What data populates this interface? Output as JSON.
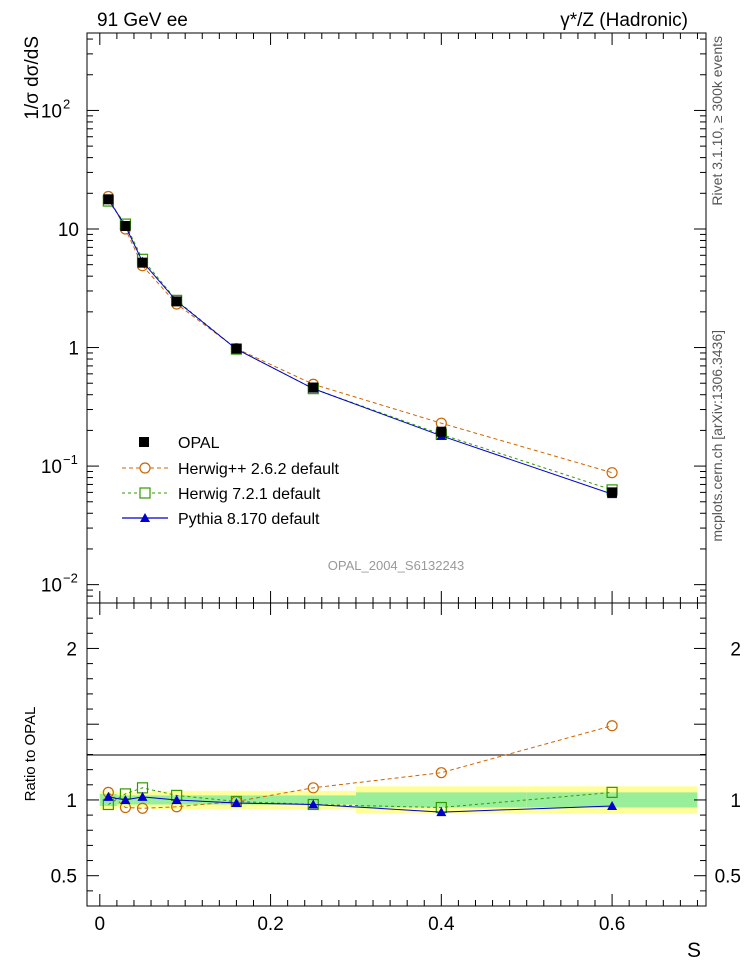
{
  "header": {
    "left_title": "91 GeV ee",
    "right_title": "γ*/Z (Hadronic)"
  },
  "side_text": {
    "rivet": "Rivet 3.1.10, ≥ 300k events",
    "source": "mcplots.cern.ch [arXiv:1306.3436]"
  },
  "watermark": "OPAL_2004_S6132243",
  "main_ylabel": "1/σ dσ/dS",
  "ratio_ylabel": "Ratio to OPAL",
  "xlabel": "S",
  "main_yticks": [
    {
      "value": 100,
      "base": "10",
      "exp": "2"
    },
    {
      "value": 10,
      "base": "10",
      "exp": ""
    },
    {
      "value": 1,
      "base": "1",
      "exp": ""
    },
    {
      "value": 0.1,
      "base": "10",
      "exp": "−1"
    },
    {
      "value": 0.01,
      "base": "10",
      "exp": "−2"
    }
  ],
  "ratio_yticks": [
    {
      "value": 2,
      "label": "2"
    },
    {
      "value": 1,
      "label": "1"
    },
    {
      "value": 0.5,
      "label": "0.5"
    }
  ],
  "xticks": [
    {
      "value": 0,
      "label": "0"
    },
    {
      "value": 0.2,
      "label": "0.2"
    },
    {
      "value": 0.4,
      "label": "0.4"
    },
    {
      "value": 0.6,
      "label": "0.6"
    }
  ],
  "legend": {
    "opal": "OPAL",
    "herwigpp": "Herwig++ 2.6.2 default",
    "herwig7": "Herwig 7.2.1 default",
    "pythia": "Pythia 8.170 default"
  },
  "chart_data": {
    "type": "line",
    "title": "91 GeV ee — γ*/Z (Hadronic)",
    "xlabel": "S",
    "ylabel": "1/σ dσ/dS",
    "yscale": "log",
    "xlim": [
      -0.015,
      0.71
    ],
    "ylim": [
      0.007,
      450
    ],
    "ratio_ylim": [
      0.3,
      2.3
    ],
    "x": [
      0.01,
      0.03,
      0.05,
      0.09,
      0.16,
      0.25,
      0.4,
      0.6
    ],
    "bin_edges": [
      0.0,
      0.02,
      0.04,
      0.06,
      0.12,
      0.2,
      0.3,
      0.5,
      0.7
    ],
    "data": {
      "name": "OPAL",
      "values": [
        17.8,
        10.6,
        5.2,
        2.45,
        0.98,
        0.46,
        0.195,
        0.06
      ],
      "ratio_band_inner": [
        0.04,
        0.03,
        0.03,
        0.03,
        0.03,
        0.03,
        0.05,
        0.05
      ],
      "ratio_band_outer": [
        0.06,
        0.05,
        0.05,
        0.06,
        0.06,
        0.06,
        0.09,
        0.09
      ]
    },
    "series": [
      {
        "name": "Herwig++ 2.6.2 default",
        "color": "#cc6600",
        "marker": "open-circle",
        "dash": "4,3",
        "values": [
          18.8,
          10.0,
          4.9,
          2.33,
          0.98,
          0.49,
          0.23,
          0.088
        ],
        "ratio": [
          1.05,
          0.95,
          0.945,
          0.955,
          0.99,
          1.08,
          1.18,
          1.49
        ]
      },
      {
        "name": "Herwig 7.2.1 default",
        "color": "#339900",
        "marker": "open-square",
        "dash": "3,3",
        "values": [
          17.2,
          11.0,
          5.55,
          2.5,
          0.97,
          0.45,
          0.185,
          0.063
        ],
        "ratio": [
          0.97,
          1.04,
          1.08,
          1.03,
          0.99,
          0.97,
          0.95,
          1.05
        ]
      },
      {
        "name": "Pythia 8.170 default",
        "color": "#0000cc",
        "marker": "filled-triangle",
        "dash": "",
        "values": [
          17.8,
          10.6,
          5.3,
          2.46,
          0.97,
          0.45,
          0.18,
          0.058
        ],
        "ratio": [
          1.02,
          1.0,
          1.02,
          1.0,
          0.98,
          0.97,
          0.92,
          0.96
        ]
      }
    ]
  }
}
